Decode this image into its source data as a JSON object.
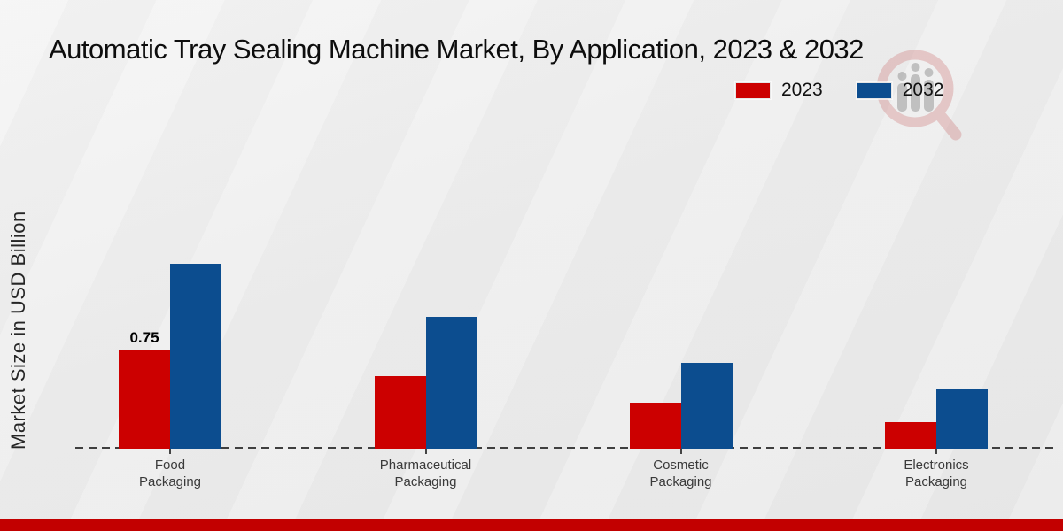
{
  "chart_data": {
    "type": "bar",
    "title": "Automatic Tray Sealing Machine Market, By Application, 2023 & 2032",
    "ylabel": "Market Size in USD Billion",
    "xlabel": "",
    "categories": [
      "Food Packaging",
      "Pharmaceutical Packaging",
      "Cosmetic Packaging",
      "Electronics Packaging"
    ],
    "series": [
      {
        "name": "2023",
        "color": "#cc0000",
        "values": [
          0.75,
          0.55,
          0.35,
          0.2
        ]
      },
      {
        "name": "2032",
        "color": "#0c4d8f",
        "values": [
          1.4,
          1.0,
          0.65,
          0.45
        ]
      }
    ],
    "annotations": [
      {
        "series_index": 0,
        "category_index": 0,
        "text": "0.75"
      }
    ],
    "ylim": [
      0,
      1.5
    ],
    "grid": false,
    "legend_position": "top-right",
    "axis_style": "dashed-baseline-only"
  },
  "watermark": {
    "name": "market-research-future-logo"
  },
  "footer": {
    "accent_color": "#c20000"
  },
  "colors": {
    "series_2023": "#cc0000",
    "series_2032": "#0c4d8f",
    "baseline": "#3f3f3f",
    "background": "#ededed"
  }
}
